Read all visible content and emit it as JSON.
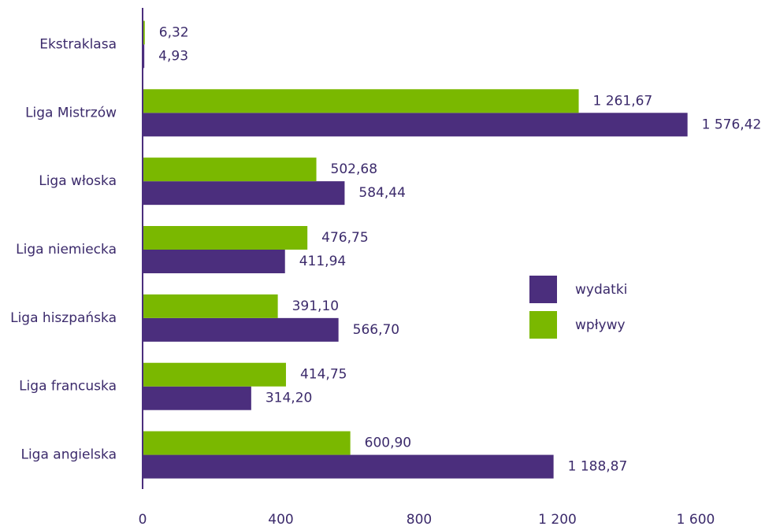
{
  "chart_data": {
    "type": "barh",
    "categories": [
      "Ekstraklasa",
      "Liga Mistrzów",
      "Liga włoska",
      "Liga niemiecka",
      "Liga hiszpańska",
      "Liga francuska",
      "Liga angielska"
    ],
    "series": [
      {
        "name": "wydatki",
        "color": "#4b2e7d",
        "values": [
          4.93,
          1576.42,
          584.44,
          411.94,
          566.7,
          314.2,
          1188.87
        ],
        "value_labels": [
          "4,93",
          "1 576,42",
          "584,44",
          "411,94",
          "566,70",
          "314,20",
          "1 188,87"
        ]
      },
      {
        "name": "wpływy",
        "color": "#7ab800",
        "values": [
          6.32,
          1261.67,
          502.68,
          476.75,
          391.1,
          414.75,
          600.9
        ],
        "value_labels": [
          "6,32",
          "1 261,67",
          "502,68",
          "476,75",
          "391,10",
          "414,75",
          "600,90"
        ]
      }
    ],
    "xlim": [
      0,
      1600
    ],
    "xticks": [
      0,
      400,
      800,
      {
        "value": 1200,
        "label": "1 200"
      },
      {
        "value": 1600,
        "label": "1 600"
      }
    ],
    "legend": "right"
  }
}
